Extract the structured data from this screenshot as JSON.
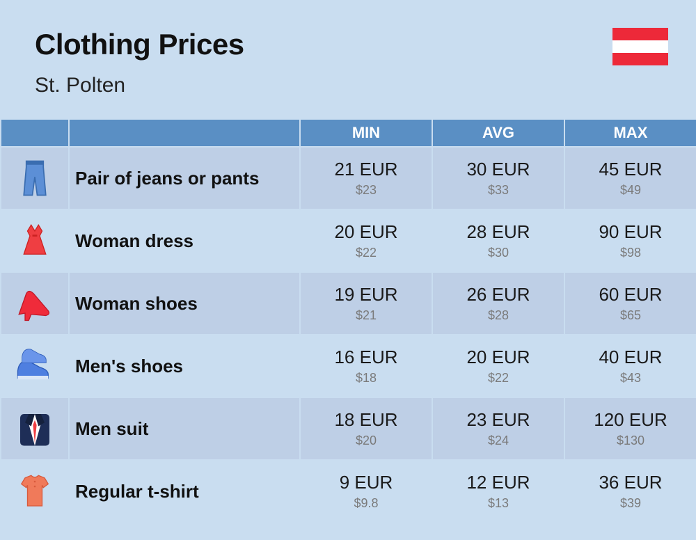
{
  "header": {
    "title": "Clothing Prices",
    "subtitle": "St. Polten",
    "flag": {
      "top_color": "#ed2939",
      "mid_color": "#ffffff",
      "bot_color": "#ed2939"
    }
  },
  "columns": {
    "min": "MIN",
    "avg": "AVG",
    "max": "MAX"
  },
  "table_style": {
    "header_bg": "#5a8fc4",
    "header_fg": "#ffffff",
    "row_odd_bg": "#becfe6",
    "row_even_bg": "#c9ddf0",
    "primary_fontsize": 26,
    "secondary_fontsize": 18,
    "secondary_color": "#7a7a7a"
  },
  "rows": [
    {
      "icon": "jeans",
      "name": "Pair of jeans or pants",
      "min": {
        "eur": "21 EUR",
        "usd": "$23"
      },
      "avg": {
        "eur": "30 EUR",
        "usd": "$33"
      },
      "max": {
        "eur": "45 EUR",
        "usd": "$49"
      }
    },
    {
      "icon": "dress",
      "name": "Woman dress",
      "min": {
        "eur": "20 EUR",
        "usd": "$22"
      },
      "avg": {
        "eur": "28 EUR",
        "usd": "$30"
      },
      "max": {
        "eur": "90 EUR",
        "usd": "$98"
      }
    },
    {
      "icon": "heel",
      "name": "Woman shoes",
      "min": {
        "eur": "19 EUR",
        "usd": "$21"
      },
      "avg": {
        "eur": "26 EUR",
        "usd": "$28"
      },
      "max": {
        "eur": "60 EUR",
        "usd": "$65"
      }
    },
    {
      "icon": "sneakers",
      "name": "Men's shoes",
      "min": {
        "eur": "16 EUR",
        "usd": "$18"
      },
      "avg": {
        "eur": "20 EUR",
        "usd": "$22"
      },
      "max": {
        "eur": "40 EUR",
        "usd": "$43"
      }
    },
    {
      "icon": "suit",
      "name": "Men suit",
      "min": {
        "eur": "18 EUR",
        "usd": "$20"
      },
      "avg": {
        "eur": "23 EUR",
        "usd": "$24"
      },
      "max": {
        "eur": "120 EUR",
        "usd": "$130"
      }
    },
    {
      "icon": "tshirt",
      "name": "Regular t-shirt",
      "min": {
        "eur": "9 EUR",
        "usd": "$9.8"
      },
      "avg": {
        "eur": "12 EUR",
        "usd": "$13"
      },
      "max": {
        "eur": "36 EUR",
        "usd": "$39"
      }
    }
  ]
}
